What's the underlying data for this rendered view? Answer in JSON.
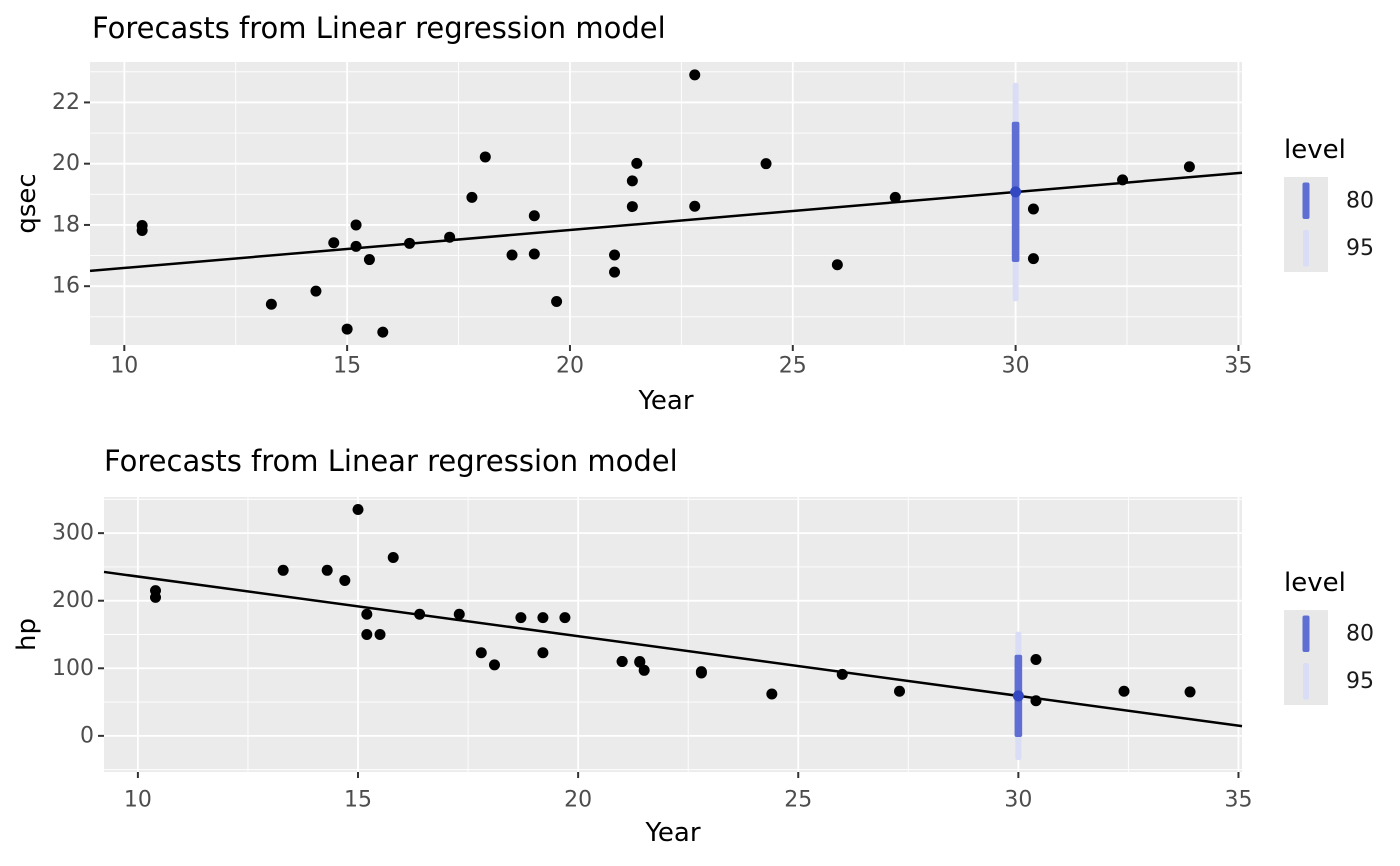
{
  "page": {
    "background": "#FFFFFF"
  },
  "colors": {
    "panel_bg": "#EBEBEB",
    "grid": "#FFFFFF",
    "point": "#000000",
    "line": "#000000",
    "level80": "#5E6ED3",
    "level95": "#D9DEF6",
    "forecast_mean": "#3247C1",
    "tick_mark": "#333333",
    "tick_label": "#4D4D4D",
    "axis_title": "#000000",
    "title": "#000000",
    "legend_key_bg": "#E8E8E8",
    "legend_label": "#1A1A1A"
  },
  "chart_data": [
    {
      "id": "qsec",
      "type": "scatter",
      "title": "Forecasts from Linear regression model",
      "xlabel": "Year",
      "ylabel": "qsec",
      "xlim": [
        9.23,
        35.08
      ],
      "ylim": [
        14.08,
        23.32
      ],
      "x_ticks": [
        10,
        15,
        20,
        25,
        30,
        35
      ],
      "x_minor": [
        12.5,
        17.5,
        22.5,
        27.5,
        32.5
      ],
      "y_ticks": [
        16,
        18,
        20,
        22
      ],
      "y_minor": [
        15,
        17,
        19,
        21,
        23
      ],
      "grid": true,
      "legend_position": "right",
      "points": [
        [
          21.0,
          16.46
        ],
        [
          21.0,
          17.02
        ],
        [
          22.8,
          18.61
        ],
        [
          21.4,
          19.44
        ],
        [
          18.7,
          17.02
        ],
        [
          18.1,
          20.22
        ],
        [
          14.3,
          15.84
        ],
        [
          24.4,
          20.0
        ],
        [
          22.8,
          22.9
        ],
        [
          19.2,
          18.3
        ],
        [
          17.8,
          18.9
        ],
        [
          16.4,
          17.4
        ],
        [
          17.3,
          17.6
        ],
        [
          15.2,
          18.0
        ],
        [
          10.4,
          17.98
        ],
        [
          10.4,
          17.82
        ],
        [
          14.7,
          17.42
        ],
        [
          32.4,
          19.47
        ],
        [
          30.4,
          18.52
        ],
        [
          33.9,
          19.9
        ],
        [
          21.5,
          20.01
        ],
        [
          15.5,
          16.87
        ],
        [
          15.2,
          17.3
        ],
        [
          13.3,
          15.41
        ],
        [
          19.2,
          17.05
        ],
        [
          27.3,
          18.9
        ],
        [
          26.0,
          16.7
        ],
        [
          30.4,
          16.9
        ],
        [
          15.8,
          14.5
        ],
        [
          19.7,
          15.5
        ],
        [
          15.0,
          14.6
        ],
        [
          21.4,
          18.6
        ]
      ],
      "regression": {
        "intercept": 15.355,
        "slope": 0.124
      },
      "forecast": {
        "x": 30,
        "mean": 19.08,
        "lo80": 16.79,
        "hi80": 21.37,
        "lo95": 15.51,
        "hi95": 22.64
      },
      "legend": {
        "title": "level",
        "entries": [
          {
            "label": "80",
            "color_key": "level80"
          },
          {
            "label": "95",
            "color_key": "level95"
          }
        ]
      }
    },
    {
      "id": "hp",
      "type": "scatter",
      "title": "Forecasts from Linear regression model",
      "xlabel": "Year",
      "ylabel": "hp",
      "xlim": [
        9.23,
        35.08
      ],
      "ylim": [
        -53.5,
        353.5
      ],
      "x_ticks": [
        10,
        15,
        20,
        25,
        30,
        35
      ],
      "x_minor": [
        12.5,
        17.5,
        22.5,
        27.5,
        32.5
      ],
      "y_ticks": [
        0,
        100,
        200,
        300
      ],
      "y_minor": [
        -50,
        50,
        150,
        250,
        350
      ],
      "grid": true,
      "legend_position": "right",
      "points": [
        [
          21.0,
          110
        ],
        [
          21.0,
          110
        ],
        [
          22.8,
          93
        ],
        [
          21.4,
          110
        ],
        [
          18.7,
          175
        ],
        [
          18.1,
          105
        ],
        [
          14.3,
          245
        ],
        [
          24.4,
          62
        ],
        [
          22.8,
          95
        ],
        [
          19.2,
          123
        ],
        [
          17.8,
          123
        ],
        [
          16.4,
          180
        ],
        [
          17.3,
          180
        ],
        [
          15.2,
          180
        ],
        [
          10.4,
          205
        ],
        [
          10.4,
          215
        ],
        [
          14.7,
          230
        ],
        [
          32.4,
          66
        ],
        [
          30.4,
          52
        ],
        [
          33.9,
          65
        ],
        [
          21.5,
          97
        ],
        [
          15.5,
          150
        ],
        [
          15.2,
          150
        ],
        [
          13.3,
          245
        ],
        [
          19.2,
          175
        ],
        [
          27.3,
          66
        ],
        [
          26.0,
          91
        ],
        [
          30.4,
          113
        ],
        [
          15.8,
          264
        ],
        [
          19.7,
          175
        ],
        [
          15.0,
          335
        ],
        [
          21.4,
          109
        ]
      ],
      "regression": {
        "intercept": 324.08,
        "slope": -8.83
      },
      "forecast": {
        "x": 30,
        "mean": 59.2,
        "lo80": -1.7,
        "hi80": 120.1,
        "lo95": -35.7,
        "hi95": 154.1
      },
      "legend": {
        "title": "level",
        "entries": [
          {
            "label": "80",
            "color_key": "level80"
          },
          {
            "label": "95",
            "color_key": "level95"
          }
        ]
      }
    }
  ]
}
